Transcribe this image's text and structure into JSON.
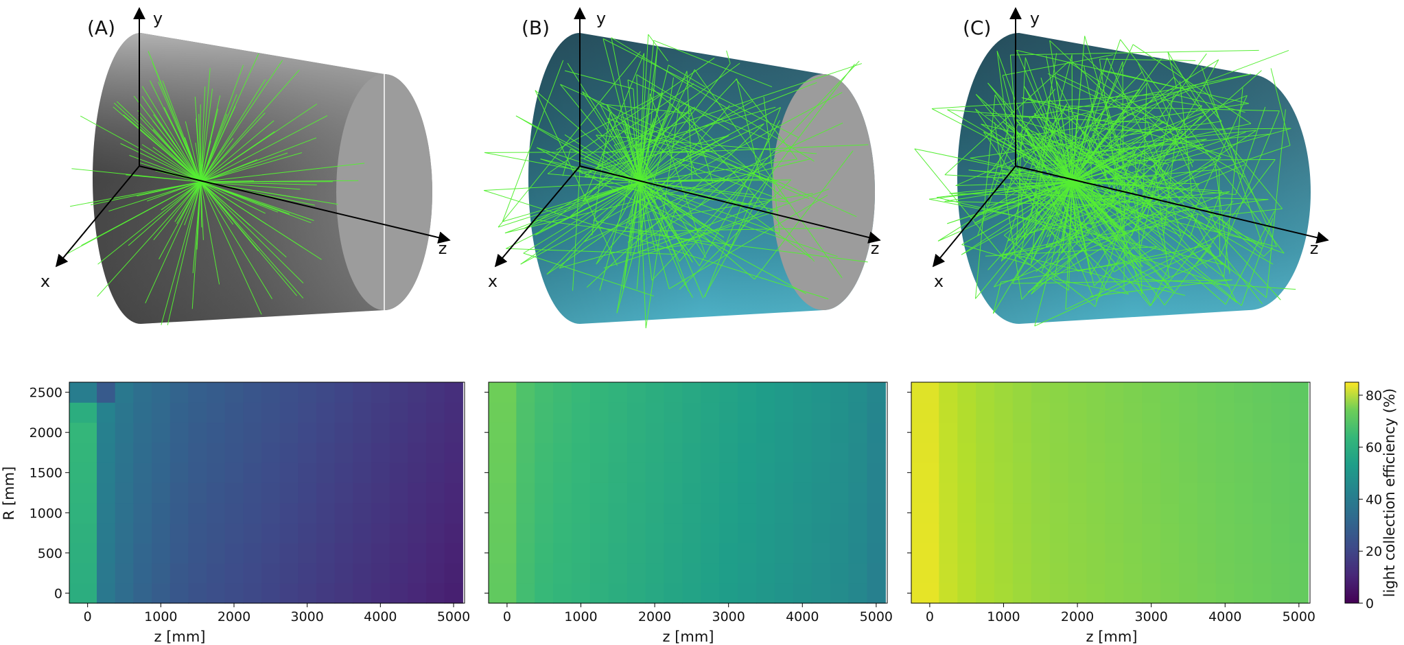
{
  "chart_data": [
    {
      "type": "3d-illustration",
      "panel_label": "(A)",
      "axes": [
        "x",
        "y",
        "z"
      ],
      "wall_reflection": false,
      "track_color": "#55ee33"
    },
    {
      "type": "3d-illustration",
      "panel_label": "(B)",
      "axes": [
        "x",
        "y",
        "z"
      ],
      "wall_reflection": true,
      "end_cap_reflective": false,
      "track_color": "#55ee33"
    },
    {
      "type": "3d-illustration",
      "panel_label": "(C)",
      "axes": [
        "x",
        "y",
        "z"
      ],
      "wall_reflection": true,
      "end_cap_reflective": true,
      "track_color": "#55ee33"
    },
    {
      "type": "heatmap",
      "xlabel": "z [mm]",
      "ylabel": "R [mm]",
      "xticks": [
        0,
        1000,
        2000,
        3000,
        4000,
        5000
      ],
      "yticks": [
        0,
        500,
        1000,
        1500,
        2000,
        2500
      ],
      "xlim": [
        -250,
        5150
      ],
      "ylim": [
        -125,
        2625
      ],
      "z_edges": [
        -250,
        125,
        375,
        625,
        875,
        1125,
        1375,
        1625,
        1875,
        2125,
        2375,
        2625,
        2875,
        3125,
        3375,
        3625,
        3875,
        4125,
        4375,
        4625,
        4875,
        5125
      ],
      "r_edges": [
        -125,
        125,
        375,
        625,
        875,
        1125,
        1375,
        1625,
        1875,
        2125,
        2375,
        2625
      ],
      "edge_values": [
        53,
        34,
        30,
        27,
        25,
        23,
        21.5,
        20.5,
        19.5,
        18.5,
        17.5,
        16.5,
        15.5,
        14.5,
        13.5,
        12.5,
        11.5,
        10.5,
        9.5,
        8.5,
        7.5
      ],
      "corner_values": {
        "inner_ring_r2250_z0": 53,
        "outer_ring_r2500_z0": 36,
        "outer_ring_r2500_z250": 24
      },
      "radial_increment": 0.4
    },
    {
      "type": "heatmap",
      "xlabel": "z [mm]",
      "xticks": [
        0,
        1000,
        2000,
        3000,
        4000,
        5000
      ],
      "xlim": [
        -250,
        5150
      ],
      "ylim": [
        -125,
        2625
      ],
      "z_edges": [
        -250,
        125,
        375,
        625,
        875,
        1125,
        1375,
        1625,
        1875,
        2125,
        2375,
        2625,
        2875,
        3125,
        3375,
        3625,
        3875,
        4125,
        4375,
        4625,
        4875,
        5125
      ],
      "r_edges": [
        -125,
        125,
        375,
        625,
        875,
        1125,
        1375,
        1625,
        1875,
        2125,
        2375,
        2625
      ],
      "edge_values": [
        64,
        59,
        57,
        56,
        55,
        54,
        53,
        52,
        51,
        50,
        49,
        48,
        47,
        46,
        45,
        44,
        43,
        42,
        41,
        39.5,
        37
      ],
      "radial_increment": 0.2
    },
    {
      "type": "heatmap",
      "xlabel": "z [mm]",
      "xticks": [
        0,
        1000,
        2000,
        3000,
        4000,
        5000
      ],
      "xlim": [
        -250,
        5150
      ],
      "ylim": [
        -125,
        2625
      ],
      "z_edges": [
        -250,
        125,
        375,
        625,
        875,
        1125,
        1375,
        1625,
        1875,
        2125,
        2375,
        2625,
        2875,
        3125,
        3375,
        3625,
        3875,
        4125,
        4375,
        4625,
        4875,
        5125
      ],
      "r_edges": [
        -125,
        125,
        375,
        625,
        875,
        1125,
        1375,
        1625,
        1875,
        2125,
        2375,
        2625
      ],
      "edge_values": [
        82,
        78,
        76,
        74.5,
        73.5,
        72.5,
        71.5,
        71,
        70.5,
        70,
        69.5,
        69,
        68.5,
        68,
        67.5,
        67,
        66.5,
        66,
        65.5,
        65,
        64.5
      ],
      "radial_increment": -0.1
    }
  ],
  "colorbar": {
    "label": "light collection efficiency (%)",
    "ticks": [
      0,
      20,
      40,
      60,
      80
    ],
    "range": [
      0,
      85
    ],
    "colormap": "viridis"
  }
}
